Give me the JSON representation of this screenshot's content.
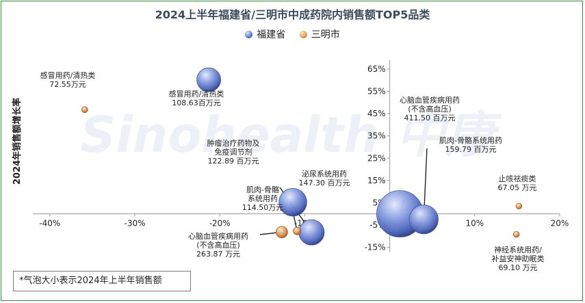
{
  "chart_data": {
    "type": "scatter",
    "title": "2024上半年福建省/三明市中成药院内销售额TOP5品类",
    "ylabel": "2024年销售额增长率",
    "xlim": [
      -0.42,
      0.2
    ],
    "ylim": [
      -0.17,
      0.69
    ],
    "x_ticks": [
      {
        "value": -0.4,
        "label": "-40%"
      },
      {
        "value": -0.3,
        "label": "-30%"
      },
      {
        "value": -0.2,
        "label": "-20%"
      },
      {
        "value": -0.1,
        "label": "-10%"
      },
      {
        "value": 0.0,
        "label": "0%"
      },
      {
        "value": 0.1,
        "label": "10%"
      },
      {
        "value": 0.2,
        "label": "20%"
      }
    ],
    "y_ticks": [
      {
        "value": -0.15,
        "label": "-15%"
      },
      {
        "value": -0.05,
        "label": "-5%"
      },
      {
        "value": 0.05,
        "label": "5%"
      },
      {
        "value": 0.15,
        "label": "15%"
      },
      {
        "value": 0.25,
        "label": "25%"
      },
      {
        "value": 0.35,
        "label": "35%"
      },
      {
        "value": 0.45,
        "label": "45%"
      },
      {
        "value": 0.55,
        "label": "55%"
      },
      {
        "value": 0.65,
        "label": "65%"
      }
    ],
    "legend_position": "top",
    "series": [
      {
        "name": "福建省",
        "color": "#5b74c9",
        "points": [
          {
            "label_lines": [
              "感冒用药/清热类",
              "108.63百万元"
            ],
            "x": -0.213,
            "y": 0.602,
            "size": 108.63
          },
          {
            "label_lines": [
              "肿瘤治疗药物及",
              "免疫调节剂",
              "122.89 百万元"
            ],
            "x": -0.092,
            "y": -0.083,
            "size": 122.89
          },
          {
            "label_lines": [
              "泌尿系统用药",
              "147.30 百万元"
            ],
            "x": -0.114,
            "y": 0.052,
            "size": 147.3
          },
          {
            "label_lines": [
              "心脑血管疾病用药",
              "(不含高血压)",
              "411.50 百万元"
            ],
            "x": 0.012,
            "y": 0.0,
            "size": 411.5
          },
          {
            "label_lines": [
              "肌肉-骨骼系统用药",
              "159.79 百万元"
            ],
            "x": 0.04,
            "y": -0.025,
            "size": 159.79
          }
        ]
      },
      {
        "name": "三明市",
        "color": "#e39a52",
        "points": [
          {
            "label_lines": [
              "感冒用药/清热类",
              "72.55万元"
            ],
            "x": -0.359,
            "y": 0.468,
            "size": 72.55
          },
          {
            "label_lines": [
              "肌肉-骨骼",
              "系统用药",
              "114.50万元"
            ],
            "x": -0.109,
            "y": -0.077,
            "size": 114.5
          },
          {
            "label_lines": [
              "心脑血管疾病用药",
              "(不含高血压)",
              "263.87 万元"
            ],
            "x": -0.127,
            "y": -0.082,
            "size": 263.87
          },
          {
            "label_lines": [
              "止咳祛痰类",
              "67.05 万元"
            ],
            "x": 0.152,
            "y": 0.035,
            "size": 67.05
          },
          {
            "label_lines": [
              "神经系统用药/",
              "补益安神助眠类",
              "69.10 万元"
            ],
            "x": 0.149,
            "y": -0.092,
            "size": 69.1
          }
        ]
      }
    ],
    "note": "*气泡大小表示2024年上半年销售额",
    "watermark": "Sinohealth 中康"
  }
}
